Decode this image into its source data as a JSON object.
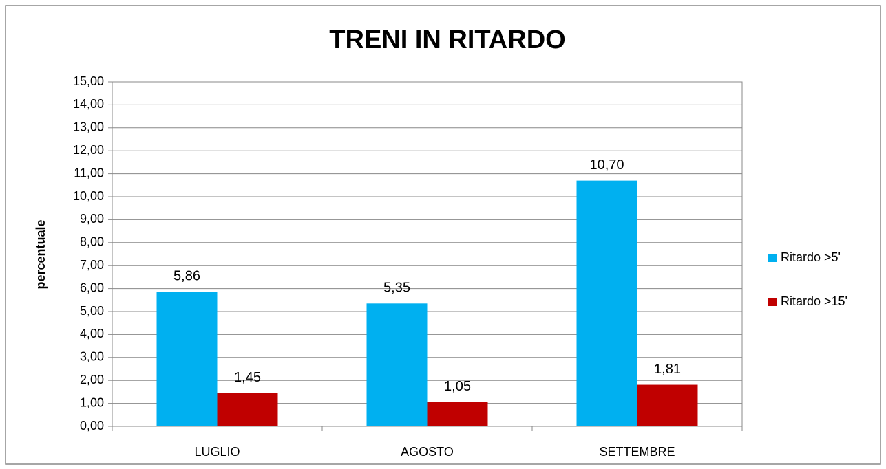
{
  "chart_data": {
    "type": "bar",
    "title": "TRENI IN RITARDO",
    "y_label": "percentuale",
    "categories": [
      "LUGLIO",
      "AGOSTO",
      "SETTEMBRE"
    ],
    "series": [
      {
        "name": "Ritardo >5'",
        "color": "#00b0f0",
        "values": [
          5.86,
          5.35,
          10.7
        ],
        "value_labels": [
          "5,86",
          "5,35",
          "10,70"
        ]
      },
      {
        "name": "Ritardo >15'",
        "color": "#c00000",
        "values": [
          1.45,
          1.05,
          1.81
        ],
        "value_labels": [
          "1,45",
          "1,05",
          "1,81"
        ]
      }
    ],
    "ylim": [
      0,
      15
    ],
    "yticks": [
      {
        "value": 0,
        "label": "0,00"
      },
      {
        "value": 1,
        "label": "1,00"
      },
      {
        "value": 2,
        "label": "2,00"
      },
      {
        "value": 3,
        "label": "3,00"
      },
      {
        "value": 4,
        "label": "4,00"
      },
      {
        "value": 5,
        "label": "5,00"
      },
      {
        "value": 6,
        "label": "6,00"
      },
      {
        "value": 7,
        "label": "7,00"
      },
      {
        "value": 8,
        "label": "8,00"
      },
      {
        "value": 9,
        "label": "9,00"
      },
      {
        "value": 10,
        "label": "10,00"
      },
      {
        "value": 11,
        "label": "11,00"
      },
      {
        "value": 12,
        "label": "12,00"
      },
      {
        "value": 13,
        "label": "13,00"
      },
      {
        "value": 14,
        "label": "14,00"
      },
      {
        "value": 15,
        "label": "15,00"
      }
    ],
    "grid": true,
    "legend": "right"
  }
}
